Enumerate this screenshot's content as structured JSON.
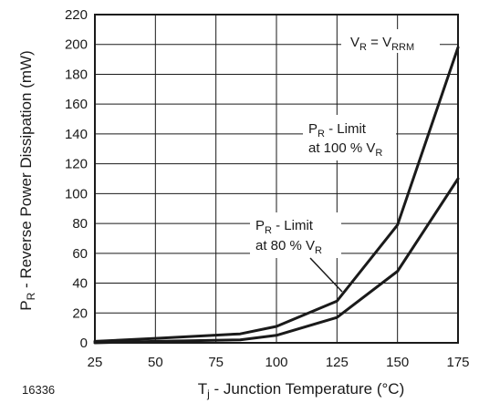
{
  "chart_data": {
    "type": "line",
    "xlabel": {
      "main": "T",
      "sub": "j",
      "rest": " - Junction Temperature (°C)"
    },
    "ylabel": {
      "main": "P",
      "sub": "R",
      "rest": " - Reverse Power Dissipation (mW)"
    },
    "xlim": [
      25,
      175
    ],
    "ylim": [
      0,
      220
    ],
    "xticks": [
      25,
      50,
      75,
      100,
      125,
      150,
      175
    ],
    "yticks": [
      0,
      20,
      40,
      60,
      80,
      100,
      120,
      140,
      160,
      180,
      200,
      220
    ],
    "grid": true,
    "series": [
      {
        "name": "P_R - Limit at 100 % V_R",
        "x": [
          25,
          50,
          85,
          100,
          125,
          150,
          175
        ],
        "y": [
          1,
          3,
          6,
          11,
          28,
          79,
          198
        ]
      },
      {
        "name": "P_R - Limit at 80 % V_R",
        "x": [
          25,
          50,
          85,
          100,
          125,
          150,
          175
        ],
        "y": [
          0,
          1,
          2,
          5,
          17,
          48,
          110
        ]
      }
    ],
    "annotations": {
      "vr": {
        "a": "V",
        "as": "R",
        "b": " = V",
        "bs": "RRM"
      },
      "limit100": {
        "l1a": "P",
        "l1s": "R",
        "l1b": " - Limit",
        "l2a": "at 100 % V",
        "l2s": "R"
      },
      "limit80": {
        "l1a": "P",
        "l1s": "R",
        "l1b": " - Limit",
        "l2a": "at 80 % V",
        "l2s": "R"
      }
    },
    "figure_id": "16336"
  }
}
